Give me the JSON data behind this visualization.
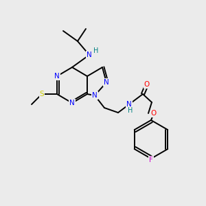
{
  "background_color": "#ebebeb",
  "atom_colors": {
    "N": "#0000ff",
    "O": "#ff0000",
    "S": "#cccc00",
    "F": "#cc00cc",
    "C": "#000000",
    "H": "#008080"
  },
  "figsize": [
    3.0,
    3.0
  ],
  "dpi": 100,
  "bond_lw": 1.4,
  "font_size": 7.5
}
